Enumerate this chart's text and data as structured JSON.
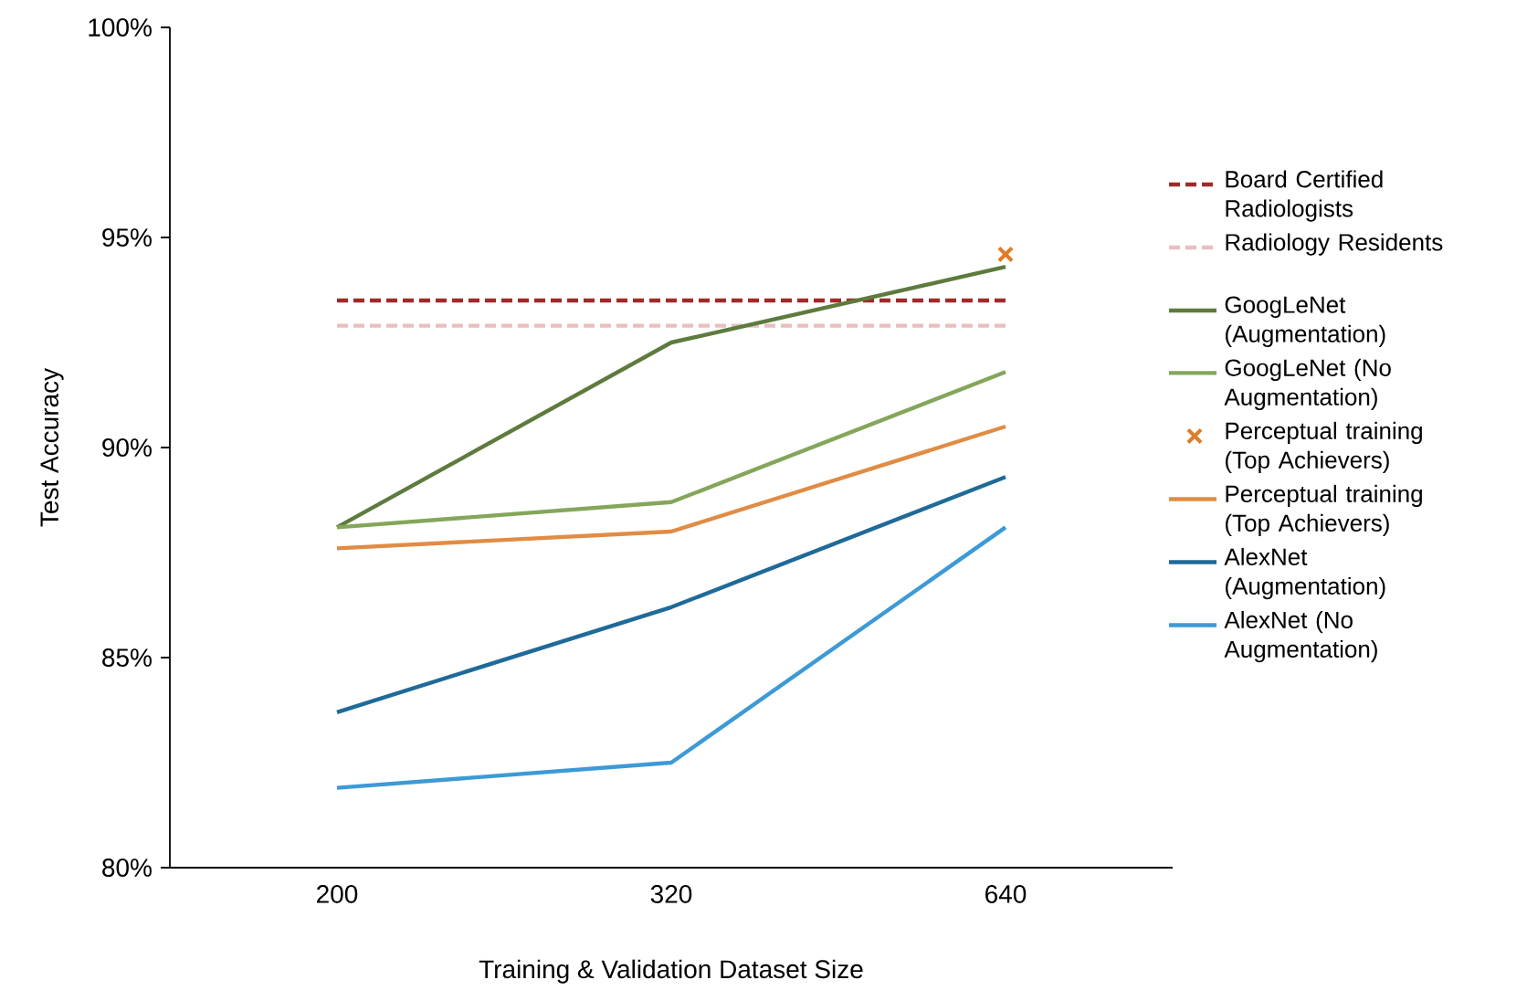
{
  "chart_data": {
    "type": "line",
    "xlabel": "Training & Validation Dataset Size",
    "ylabel": "Test Accuracy",
    "categories": [
      "200",
      "320",
      "640"
    ],
    "ylim": [
      80,
      100
    ],
    "yticks": [
      {
        "value": 80,
        "label": "80%"
      },
      {
        "value": 85,
        "label": "85%"
      },
      {
        "value": 90,
        "label": "90%"
      },
      {
        "value": 95,
        "label": "95%"
      },
      {
        "value": 100,
        "label": "100%"
      }
    ],
    "grid": false,
    "legend": "right",
    "series": [
      {
        "name": "Board Certified Radiologists",
        "color": "#a02a2a",
        "line_style": "dashed",
        "values": [
          93.5,
          93.5,
          93.5
        ]
      },
      {
        "name": "Radiology Residents",
        "color": "#e8bfbf",
        "line_style": "dashed",
        "values": [
          92.9,
          92.9,
          92.9
        ]
      },
      {
        "name": "GoogLeNet (Augmentation)",
        "color": "#5e7b3e",
        "values": [
          88.1,
          92.5,
          94.3
        ]
      },
      {
        "name": "GoogLeNet (No Augmentation)",
        "color": "#84a65b",
        "values": [
          88.1,
          88.7,
          91.8
        ]
      },
      {
        "name": "Perceptual training (Top Achievers)",
        "type": "scatter",
        "marker": "cross",
        "color": "#e07b26",
        "x": [
          "640"
        ],
        "values": [
          94.6
        ]
      },
      {
        "name": "Perceptual training (Top Achievers)",
        "color": "#e08c45",
        "values": [
          87.6,
          88.0,
          90.5
        ]
      },
      {
        "name": "AlexNet (Augmentation)",
        "color": "#1f6a99",
        "values": [
          83.7,
          86.2,
          89.3
        ]
      },
      {
        "name": "AlexNet (No Augmentation)",
        "color": "#3d9ad6",
        "values": [
          81.9,
          82.5,
          88.1
        ]
      }
    ]
  }
}
